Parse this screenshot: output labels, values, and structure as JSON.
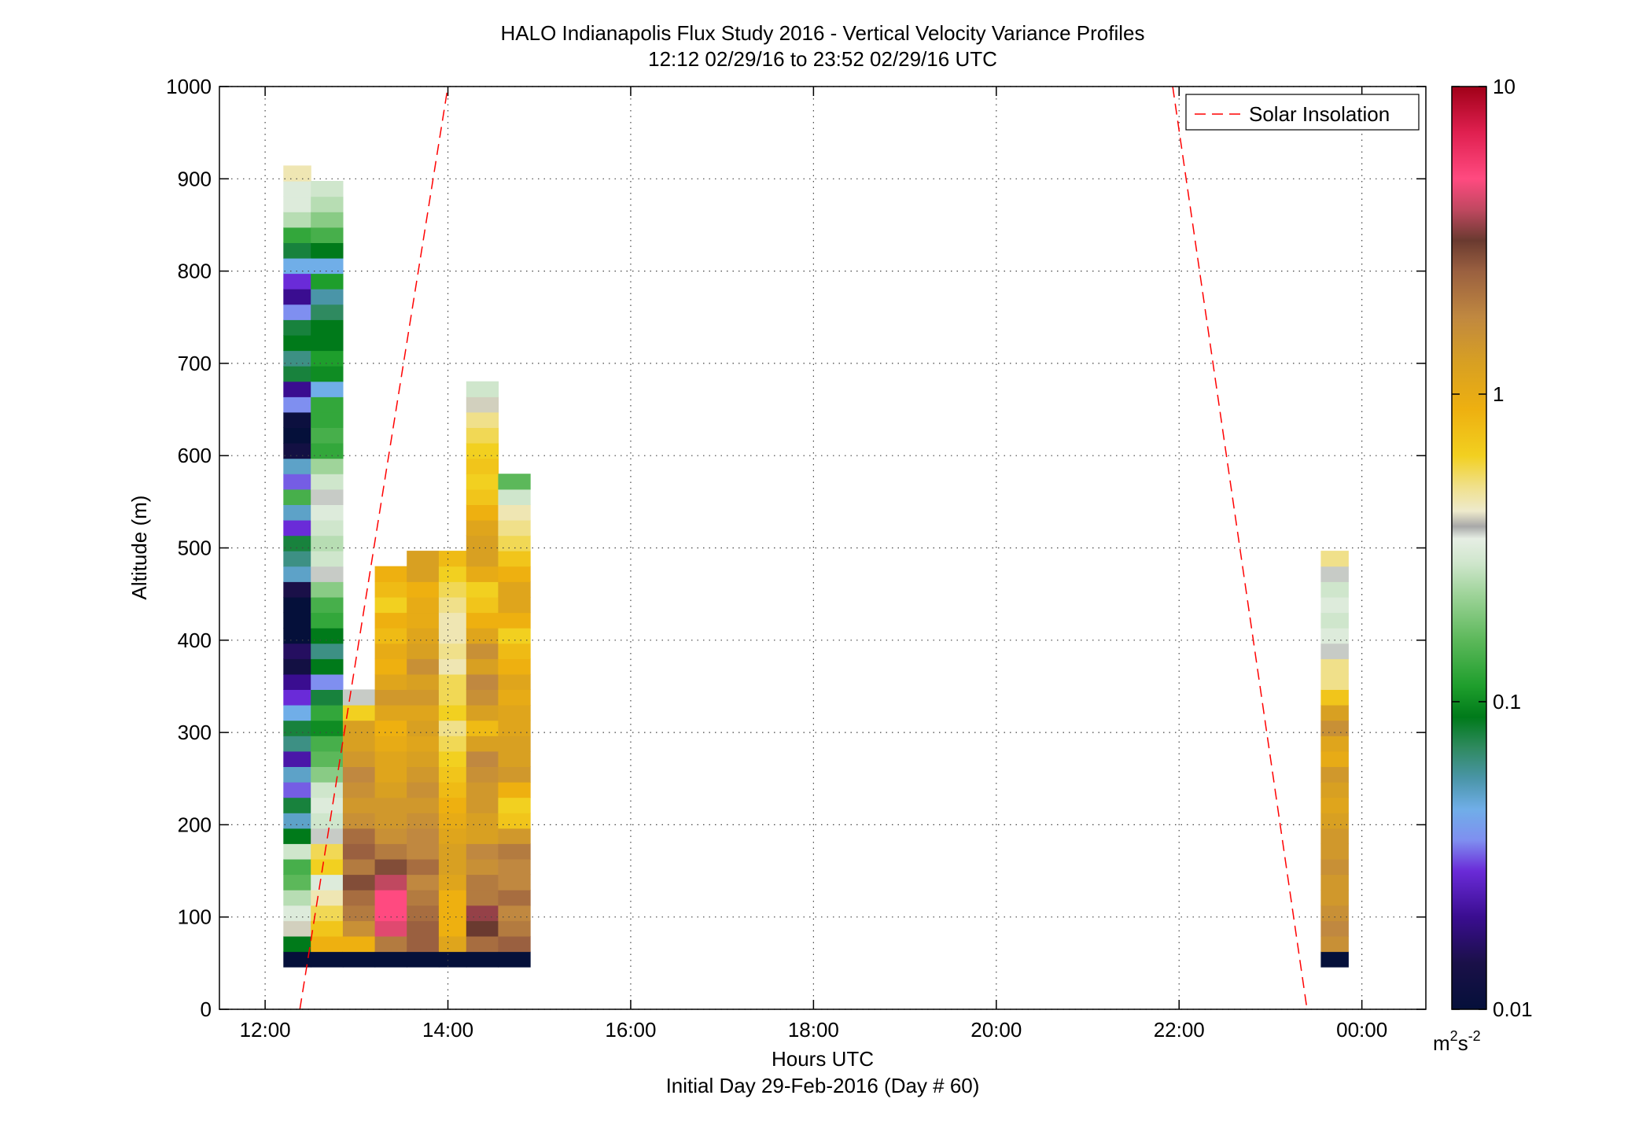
{
  "chart_data": {
    "type": "heatmap",
    "title": "HALO Indianapolis Flux Study 2016 - Vertical Velocity Variance Profiles",
    "subtitle": "12:12 02/29/16 to 23:52 02/29/16  UTC",
    "xlabel": "Hours UTC",
    "xlabel2": "Initial Day 29-Feb-2016 (Day # 60)",
    "ylabel": "Altitude (m)",
    "xlim": [
      11.5,
      24.7
    ],
    "ylim": [
      0,
      1000
    ],
    "xticks": [
      12,
      14,
      16,
      18,
      20,
      22,
      24
    ],
    "xtick_labels": [
      "12:00",
      "14:00",
      "16:00",
      "18:00",
      "20:00",
      "22:00",
      "00:00"
    ],
    "yticks": [
      0,
      100,
      200,
      300,
      400,
      500,
      600,
      700,
      800,
      900,
      1000
    ],
    "ytick_labels": [
      "0",
      "100",
      "200",
      "300",
      "400",
      "500",
      "600",
      "700",
      "800",
      "900",
      "1000"
    ],
    "grid": true,
    "legend": {
      "placement": "top-right",
      "entries": [
        "Solar Insolation"
      ]
    },
    "colorbar": {
      "scale": "log",
      "range": [
        0.01,
        10
      ],
      "ticks": [
        0.01,
        0.1,
        1,
        10
      ],
      "tick_labels": [
        "0.01",
        "0.1",
        "1",
        "10"
      ],
      "unit_base": "m",
      "unit_exp1": "2",
      "unit_mid": "s",
      "unit_exp2": "-2"
    },
    "bin_height_m": 16.7,
    "series": [
      {
        "time_start": 12.2,
        "time_end": 12.5,
        "base_m": 46,
        "values_log10": [
          -2,
          -1.05,
          -0.4,
          -0.5,
          -0.6,
          -0.8,
          -0.85,
          -0.55,
          -1.05,
          -1.3,
          -1.1,
          -1.5,
          -1.3,
          -1.65,
          -1.2,
          -1.1,
          -1.35,
          -1.55,
          -1.7,
          -1.9,
          -1.8,
          -2,
          -2,
          -2,
          -1.85,
          -1.3,
          -1.2,
          -1.1,
          -1.55,
          -1.3,
          -0.85,
          -1.5,
          -1.3,
          -1.9,
          -2,
          -1.95,
          -1.45,
          -1.7,
          -1.1,
          -1.2,
          -1.05,
          -1.1,
          -1.45,
          -1.7,
          -1.55,
          -1.35,
          -1.1,
          -0.9,
          -0.6,
          -0.5,
          -0.5,
          -0.35
        ]
      },
      {
        "time_start": 12.5,
        "time_end": 12.85,
        "base_m": 46,
        "values_log10": [
          -2,
          -0.05,
          -0.15,
          -0.25,
          -0.35,
          -0.5,
          -0.2,
          -0.25,
          -0.45,
          -0.55,
          -0.5,
          -0.55,
          -0.7,
          -0.8,
          -0.85,
          -1,
          -0.9,
          -1.1,
          -1.45,
          -1.05,
          -1.2,
          -1.05,
          -0.9,
          -0.85,
          -0.7,
          -0.45,
          -0.55,
          -0.6,
          -0.55,
          -0.5,
          -0.45,
          -0.55,
          -0.65,
          -0.9,
          -0.85,
          -0.9,
          -0.9,
          -1.35,
          -1,
          -0.95,
          -1.05,
          -1.05,
          -1.15,
          -1.25,
          -0.95,
          -1.35,
          -1.05,
          -0.85,
          -0.7,
          -0.6,
          -0.55
        ]
      },
      {
        "time_start": 12.85,
        "time_end": 13.2,
        "base_m": 46,
        "values_log10": [
          -2,
          -0.05,
          0.2,
          0.3,
          0.35,
          0.45,
          0.3,
          0.4,
          0.35,
          0.2,
          0.15,
          0.2,
          0.25,
          0.15,
          0.1,
          0.1,
          -0.2,
          -0.45
        ]
      },
      {
        "time_start": 13.2,
        "time_end": 13.55,
        "base_m": 46,
        "values_log10": [
          -2,
          0.3,
          0.65,
          0.7,
          0.7,
          0.6,
          0.45,
          0.3,
          0.2,
          0.15,
          0.15,
          0.1,
          0.05,
          0.05,
          0,
          -0.05,
          0.05,
          0.15,
          0.05,
          -0.05,
          0,
          -0.1,
          -0.05,
          -0.2,
          -0.1,
          -0.05
        ]
      },
      {
        "time_start": 13.55,
        "time_end": 13.9,
        "base_m": 46,
        "values_log10": [
          -2,
          0.4,
          0.4,
          0.35,
          0.3,
          0.25,
          0.35,
          0.25,
          0.25,
          0.2,
          0.15,
          0.2,
          0.15,
          0.1,
          0.05,
          0.1,
          0.05,
          0.15,
          0.1,
          0.2,
          0.1,
          0.05,
          0,
          0,
          -0.05,
          0.1,
          0.1
        ]
      },
      {
        "time_start": 13.9,
        "time_end": 14.2,
        "base_m": 46,
        "values_log10": [
          -2,
          0.05,
          -0.05,
          -0.05,
          -0.05,
          0.05,
          0.1,
          0.1,
          0.05,
          0,
          -0.05,
          -0.1,
          -0.15,
          -0.2,
          -0.25,
          -0.3,
          -0.2,
          -0.25,
          -0.25,
          -0.35,
          -0.3,
          -0.35,
          -0.35,
          -0.3,
          -0.25,
          -0.2,
          -0.1
        ]
      },
      {
        "time_start": 14.2,
        "time_end": 14.55,
        "base_m": 46,
        "values_log10": [
          -2,
          0.35,
          0.5,
          0.55,
          0.3,
          0.3,
          0.2,
          0.25,
          0.1,
          0.1,
          0.15,
          0.15,
          0.2,
          0.25,
          0.1,
          -0.1,
          0.1,
          0.2,
          0.25,
          0.1,
          0.2,
          0.05,
          -0.05,
          -0.15,
          -0.2,
          0,
          0.1,
          0.1,
          0.05,
          -0.05,
          -0.15,
          -0.2,
          -0.15,
          -0.2,
          -0.25,
          -0.3,
          -0.4,
          -0.55
        ]
      },
      {
        "time_start": 14.55,
        "time_end": 14.9,
        "base_m": 46,
        "values_log10": [
          -2,
          0.4,
          0.3,
          0.25,
          0.35,
          0.25,
          0.25,
          0.3,
          0.15,
          -0.15,
          -0.2,
          -0.05,
          0.15,
          0.1,
          0.1,
          0.05,
          0.05,
          0,
          0.05,
          -0.05,
          -0.1,
          -0.2,
          -0.05,
          0.05,
          0.05,
          -0.05,
          -0.15,
          -0.25,
          -0.3,
          -0.35,
          -0.55,
          -0.8
        ]
      },
      {
        "time_start": 23.55,
        "time_end": 23.85,
        "base_m": 46,
        "values_log10": [
          -2,
          0.2,
          0.25,
          0.2,
          0.15,
          0.15,
          0.2,
          0.15,
          0.15,
          0.1,
          0.05,
          0.1,
          0.15,
          0,
          0.05,
          0.2,
          0.1,
          -0.15,
          -0.3,
          -0.3,
          -0.45,
          -0.5,
          -0.55,
          -0.5,
          -0.55,
          -0.45,
          -0.3
        ]
      }
    ],
    "solar_insolation": [
      {
        "x": [
          12.38,
          14.0
        ],
        "y": [
          0,
          1000
        ]
      },
      {
        "x": [
          21.93,
          23.4
        ],
        "y": [
          1000,
          0
        ]
      }
    ]
  }
}
